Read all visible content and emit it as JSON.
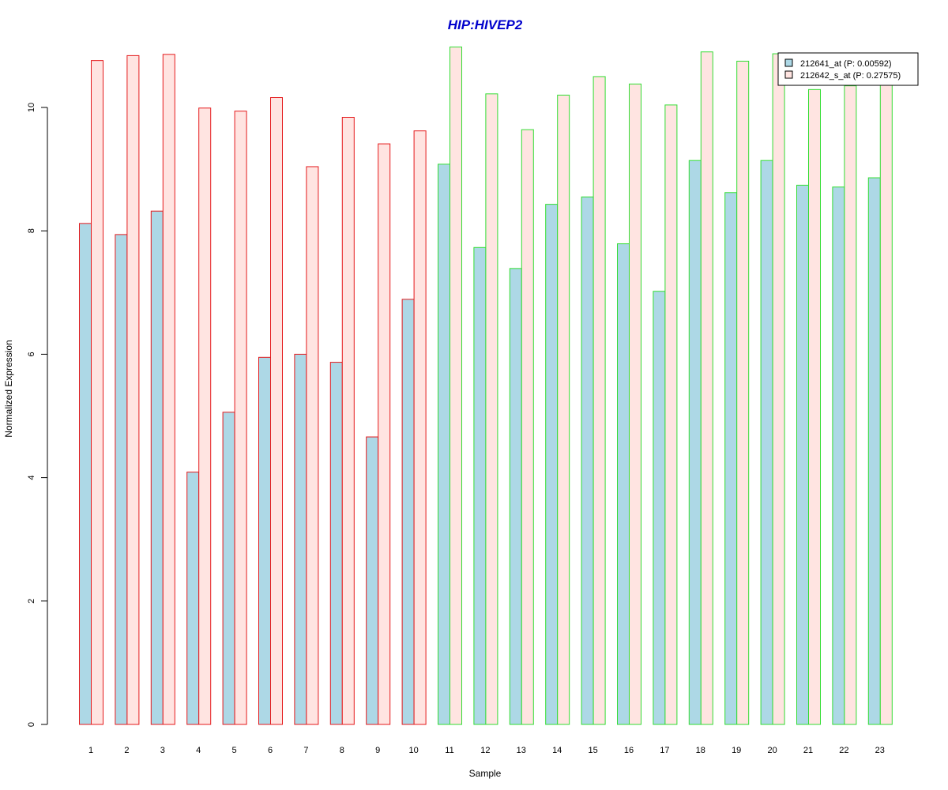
{
  "chart_data": {
    "type": "bar",
    "title": "HIP:HIVEP2",
    "xlabel": "Sample",
    "ylabel": "Normalized Expression",
    "categories": [
      "1",
      "2",
      "3",
      "4",
      "5",
      "6",
      "7",
      "8",
      "9",
      "10",
      "11",
      "12",
      "13",
      "14",
      "15",
      "16",
      "17",
      "18",
      "19",
      "20",
      "21",
      "22",
      "23"
    ],
    "ylim": [
      0,
      11
    ],
    "yticks": [
      0,
      2,
      4,
      6,
      8,
      10
    ],
    "grid": false,
    "legend_position": "top-right",
    "series": [
      {
        "name": "212641_at (P: 0.00592)",
        "fill": "#add8e6",
        "values": [
          8.12,
          7.94,
          8.32,
          4.09,
          5.06,
          5.95,
          6.0,
          5.87,
          4.66,
          6.89,
          9.08,
          7.73,
          7.39,
          8.43,
          8.55,
          7.79,
          7.02,
          9.14,
          8.62,
          9.14,
          8.74,
          8.71,
          8.86
        ]
      },
      {
        "name": "212642_s_at (P: 0.27575)",
        "fill": "#ffe4e1",
        "values": [
          10.76,
          10.84,
          10.86,
          9.99,
          9.94,
          10.16,
          9.04,
          9.84,
          9.41,
          9.62,
          10.98,
          10.22,
          9.64,
          10.2,
          10.5,
          10.38,
          10.04,
          10.9,
          10.75,
          10.87,
          10.29,
          10.35,
          10.45
        ]
      }
    ],
    "group_border_colors": [
      "#e41a1c",
      "#e41a1c",
      "#e41a1c",
      "#e41a1c",
      "#e41a1c",
      "#e41a1c",
      "#e41a1c",
      "#e41a1c",
      "#e41a1c",
      "#e41a1c",
      "#33dd33",
      "#33dd33",
      "#33dd33",
      "#33dd33",
      "#33dd33",
      "#33dd33",
      "#33dd33",
      "#33dd33",
      "#33dd33",
      "#33dd33",
      "#33dd33",
      "#33dd33",
      "#33dd33"
    ],
    "title_color": "#0000cc"
  }
}
